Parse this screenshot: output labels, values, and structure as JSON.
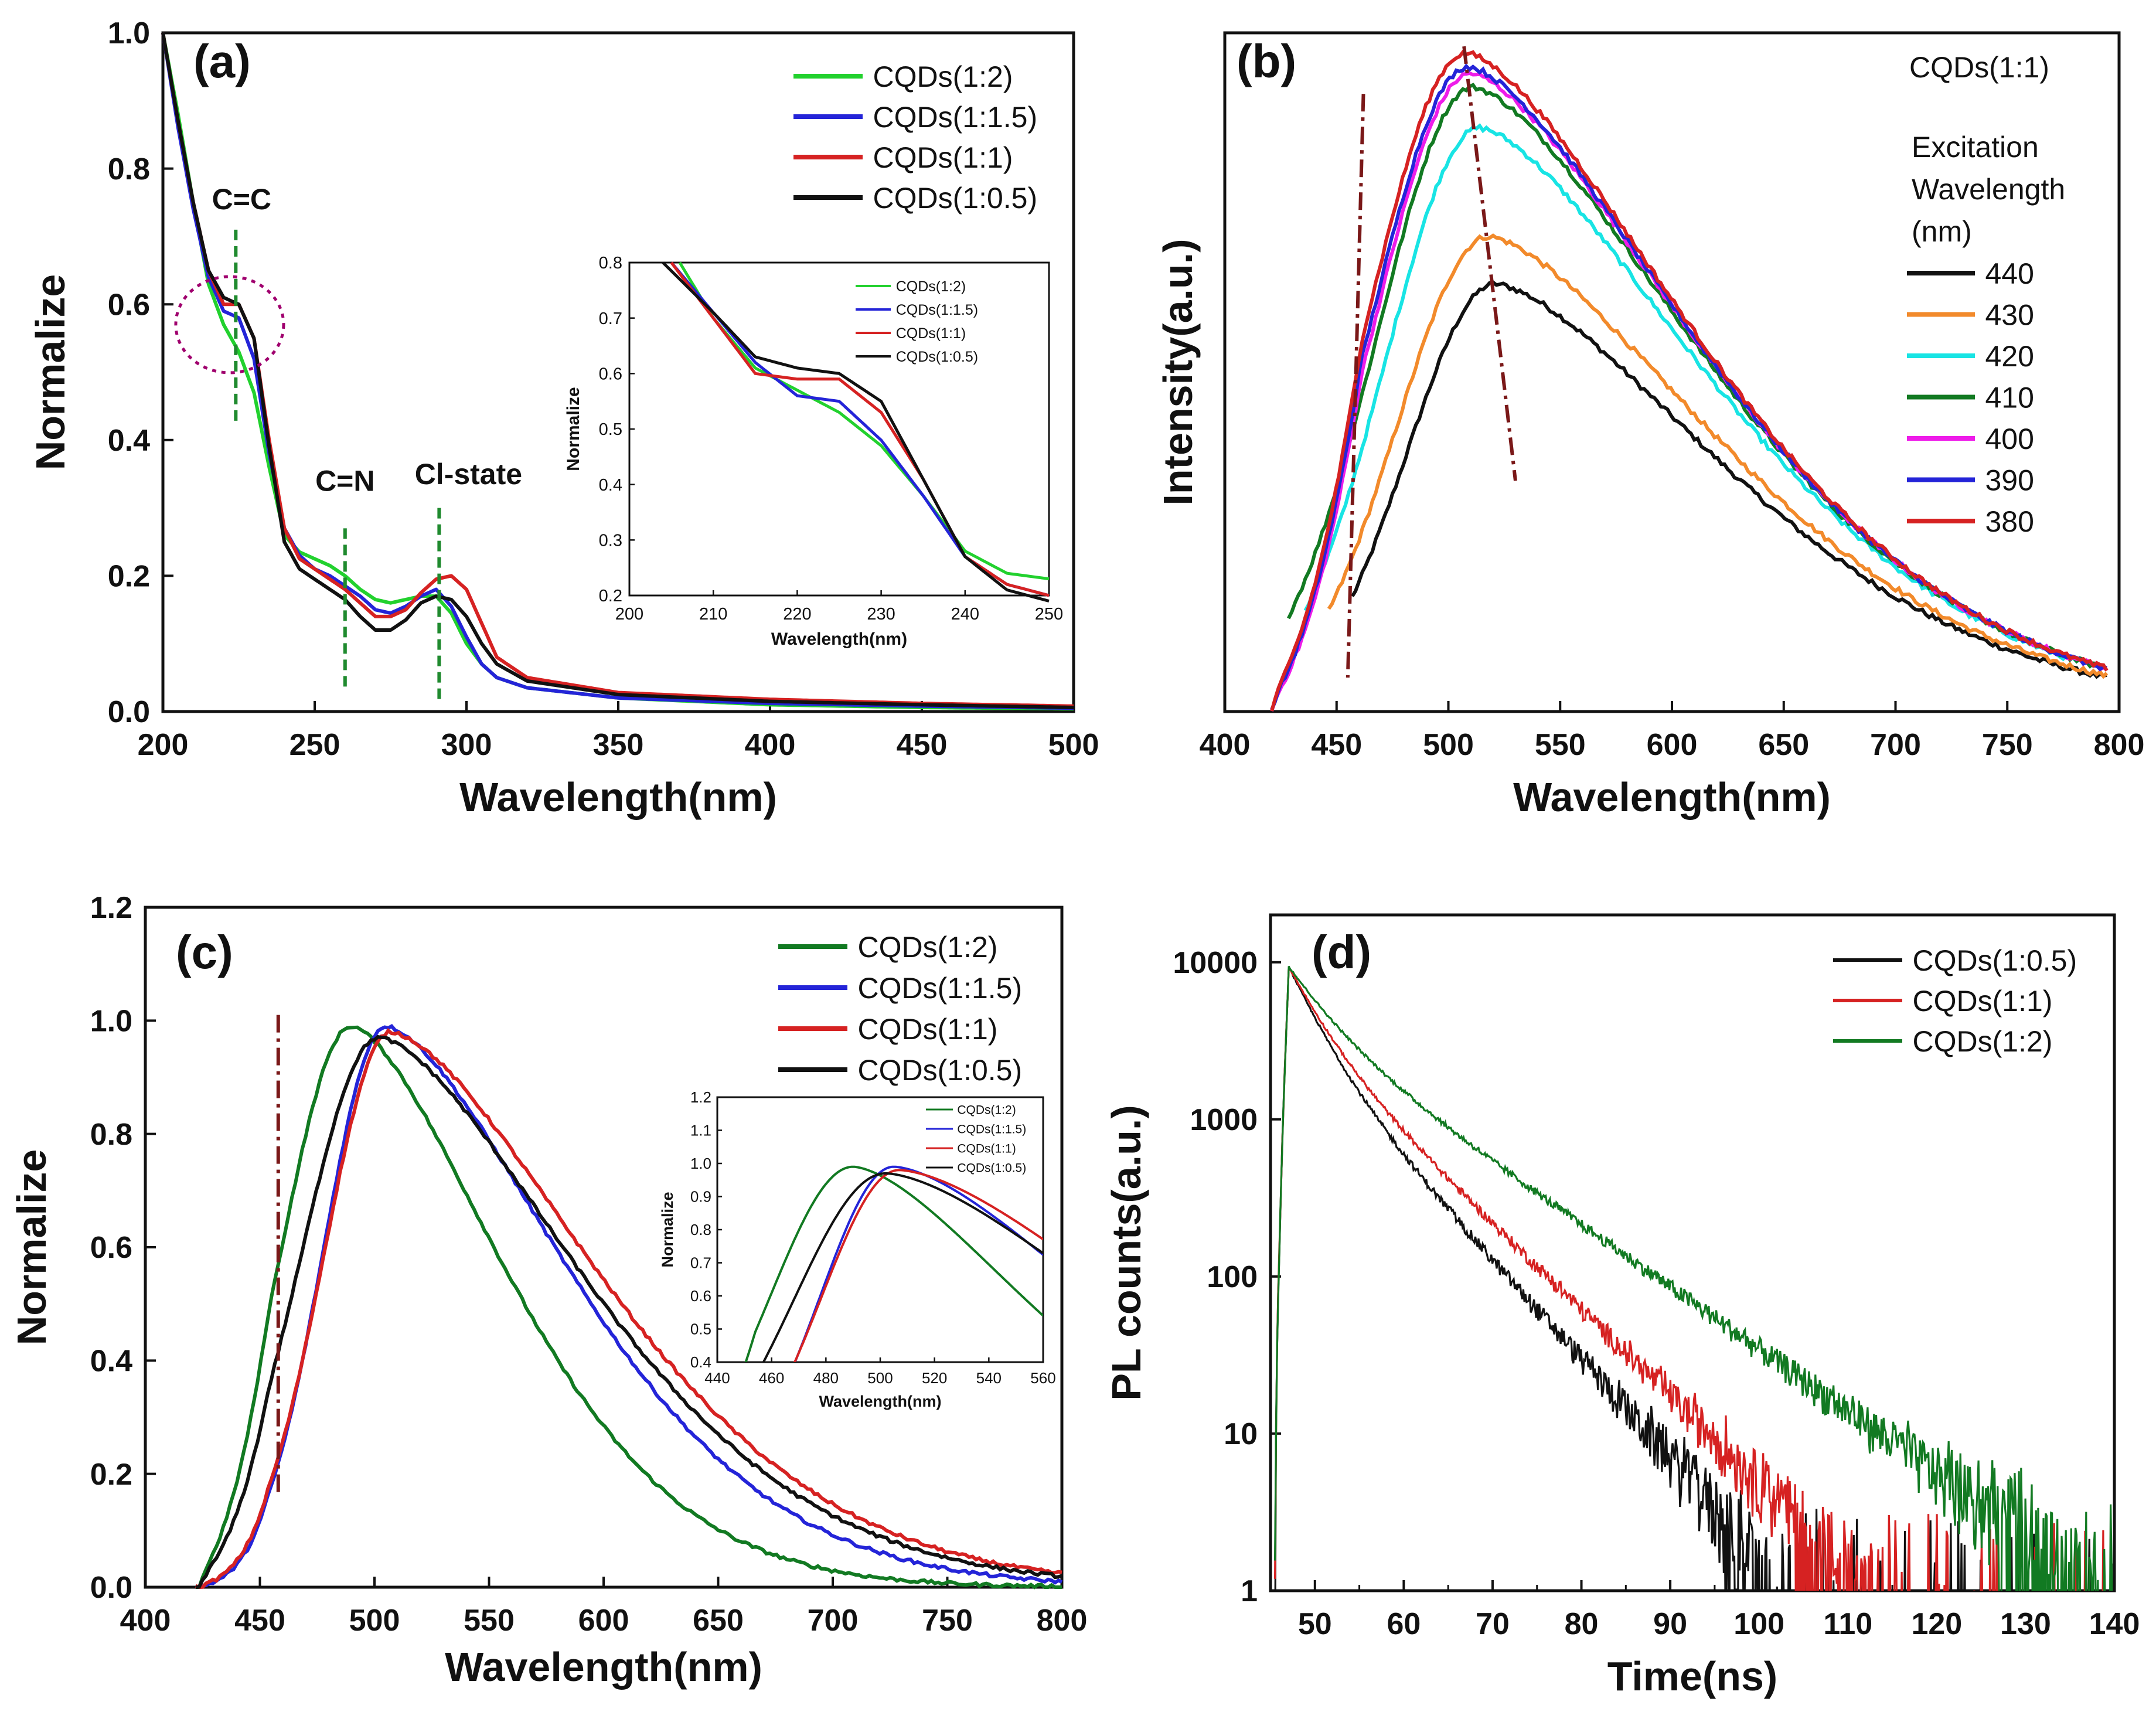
{
  "figure": {
    "colors": {
      "green": "#22d12e",
      "blue": "#2424d8",
      "red": "#d62222",
      "black": "#111111",
      "orange": "#f28a2b",
      "cyan": "#18e4e4",
      "darkgreen": "#127a22",
      "magenta": "#ee1ce9",
      "maroon": "#7a1818",
      "circle": "#a0006e",
      "dashgreen": "#1f8a2e"
    }
  },
  "chart_data": [
    {
      "id": "a",
      "tag": "(a)",
      "type": "line",
      "xlabel": "Wavelength(nm)",
      "ylabel": "Normalize",
      "xlim": [
        200,
        500
      ],
      "ylim": [
        0,
        1.0
      ],
      "xticks": [
        200,
        250,
        300,
        350,
        400,
        450,
        500
      ],
      "yticks": [
        "0.0",
        "0.2",
        "0.4",
        "0.6",
        "0.8",
        "1.0"
      ],
      "legend": [
        "CQDs(1:2)",
        "CQDs(1:1.5)",
        "CQDs(1:1)",
        "CQDs(1:0.5)"
      ],
      "annotations": [
        {
          "text": "C=C",
          "x": 224
        },
        {
          "text": "C=N",
          "x": 260
        },
        {
          "text": "Cl-state",
          "x": 291
        }
      ],
      "series": [
        {
          "name": "CQDs(1:2)",
          "color": "#22d12e",
          "points": [
            [
              200,
              1.0
            ],
            [
              205,
              0.88
            ],
            [
              210,
              0.75
            ],
            [
              215,
              0.63
            ],
            [
              220,
              0.57
            ],
            [
              225,
              0.53
            ],
            [
              230,
              0.47
            ],
            [
              235,
              0.36
            ],
            [
              240,
              0.26
            ],
            [
              245,
              0.235
            ],
            [
              250,
              0.225
            ],
            [
              255,
              0.215
            ],
            [
              260,
              0.2
            ],
            [
              265,
              0.18
            ],
            [
              270,
              0.165
            ],
            [
              275,
              0.16
            ],
            [
              280,
              0.165
            ],
            [
              285,
              0.17
            ],
            [
              290,
              0.17
            ],
            [
              295,
              0.145
            ],
            [
              300,
              0.1
            ],
            [
              305,
              0.07
            ],
            [
              310,
              0.05
            ],
            [
              320,
              0.035
            ],
            [
              350,
              0.02
            ],
            [
              400,
              0.01
            ],
            [
              450,
              0.006
            ],
            [
              500,
              0.004
            ]
          ]
        },
        {
          "name": "CQDs(1:1.5)",
          "color": "#2424d8",
          "points": [
            [
              200,
              1.0
            ],
            [
              205,
              0.86
            ],
            [
              210,
              0.74
            ],
            [
              215,
              0.64
            ],
            [
              220,
              0.59
            ],
            [
              225,
              0.58
            ],
            [
              230,
              0.52
            ],
            [
              235,
              0.38
            ],
            [
              240,
              0.27
            ],
            [
              245,
              0.23
            ],
            [
              250,
              0.21
            ],
            [
              255,
              0.2
            ],
            [
              260,
              0.185
            ],
            [
              265,
              0.17
            ],
            [
              270,
              0.15
            ],
            [
              275,
              0.145
            ],
            [
              280,
              0.155
            ],
            [
              285,
              0.17
            ],
            [
              290,
              0.18
            ],
            [
              295,
              0.155
            ],
            [
              300,
              0.11
            ],
            [
              305,
              0.07
            ],
            [
              310,
              0.05
            ],
            [
              320,
              0.035
            ],
            [
              350,
              0.02
            ],
            [
              400,
              0.012
            ],
            [
              450,
              0.008
            ],
            [
              500,
              0.005
            ]
          ]
        },
        {
          "name": "CQDs(1:1)",
          "color": "#d62222",
          "points": [
            [
              200,
              1.0
            ],
            [
              205,
              0.87
            ],
            [
              210,
              0.75
            ],
            [
              215,
              0.65
            ],
            [
              220,
              0.6
            ],
            [
              225,
              0.6
            ],
            [
              230,
              0.55
            ],
            [
              235,
              0.4
            ],
            [
              240,
              0.27
            ],
            [
              245,
              0.225
            ],
            [
              250,
              0.21
            ],
            [
              255,
              0.195
            ],
            [
              260,
              0.18
            ],
            [
              265,
              0.16
            ],
            [
              270,
              0.14
            ],
            [
              275,
              0.14
            ],
            [
              280,
              0.15
            ],
            [
              285,
              0.175
            ],
            [
              290,
              0.195
            ],
            [
              295,
              0.2
            ],
            [
              300,
              0.18
            ],
            [
              305,
              0.13
            ],
            [
              310,
              0.08
            ],
            [
              320,
              0.05
            ],
            [
              350,
              0.028
            ],
            [
              400,
              0.018
            ],
            [
              450,
              0.012
            ],
            [
              500,
              0.008
            ]
          ]
        },
        {
          "name": "CQDs(1:0.5)",
          "color": "#111111",
          "points": [
            [
              200,
              1.0
            ],
            [
              205,
              0.87
            ],
            [
              210,
              0.75
            ],
            [
              215,
              0.65
            ],
            [
              220,
              0.61
            ],
            [
              225,
              0.6
            ],
            [
              230,
              0.55
            ],
            [
              235,
              0.39
            ],
            [
              240,
              0.25
            ],
            [
              245,
              0.21
            ],
            [
              250,
              0.195
            ],
            [
              255,
              0.18
            ],
            [
              260,
              0.165
            ],
            [
              265,
              0.14
            ],
            [
              270,
              0.12
            ],
            [
              275,
              0.12
            ],
            [
              280,
              0.135
            ],
            [
              285,
              0.16
            ],
            [
              290,
              0.17
            ],
            [
              295,
              0.165
            ],
            [
              300,
              0.14
            ],
            [
              305,
              0.1
            ],
            [
              310,
              0.07
            ],
            [
              320,
              0.045
            ],
            [
              350,
              0.025
            ],
            [
              400,
              0.015
            ],
            [
              450,
              0.01
            ],
            [
              500,
              0.006
            ]
          ]
        }
      ],
      "inset": {
        "type": "line",
        "xlabel": "Wavelength(nm)",
        "ylabel": "Normalize",
        "xlim": [
          200,
          250
        ],
        "ylim": [
          0.2,
          0.8
        ],
        "xticks": [
          200,
          210,
          220,
          230,
          240,
          250
        ],
        "yticks": [
          "0.2",
          "0.3",
          "0.4",
          "0.5",
          "0.6",
          "0.7",
          "0.8"
        ],
        "legend": [
          "CQDs(1:2)",
          "CQDs(1:1.5)",
          "CQDs(1:1)",
          "CQDs(1:0.5)"
        ],
        "series": [
          {
            "name": "CQDs(1:2)",
            "color": "#22d12e",
            "points": [
              [
                206,
                0.8
              ],
              [
                210,
                0.7
              ],
              [
                215,
                0.61
              ],
              [
                220,
                0.57
              ],
              [
                225,
                0.53
              ],
              [
                230,
                0.47
              ],
              [
                235,
                0.38
              ],
              [
                240,
                0.28
              ],
              [
                245,
                0.24
              ],
              [
                250,
                0.23
              ]
            ]
          },
          {
            "name": "CQDs(1:1.5)",
            "color": "#2424d8",
            "points": [
              [
                205,
                0.8
              ],
              [
                210,
                0.71
              ],
              [
                215,
                0.62
              ],
              [
                220,
                0.56
              ],
              [
                225,
                0.55
              ],
              [
                230,
                0.48
              ],
              [
                235,
                0.38
              ],
              [
                240,
                0.27
              ],
              [
                245,
                0.22
              ],
              [
                250,
                0.2
              ]
            ]
          },
          {
            "name": "CQDs(1:1)",
            "color": "#d62222",
            "points": [
              [
                205,
                0.8
              ],
              [
                210,
                0.7
              ],
              [
                215,
                0.6
              ],
              [
                220,
                0.59
              ],
              [
                225,
                0.59
              ],
              [
                230,
                0.53
              ],
              [
                235,
                0.41
              ],
              [
                240,
                0.27
              ],
              [
                245,
                0.22
              ],
              [
                250,
                0.2
              ]
            ]
          },
          {
            "name": "CQDs(1:0.5)",
            "color": "#111111",
            "points": [
              [
                204,
                0.8
              ],
              [
                210,
                0.71
              ],
              [
                215,
                0.63
              ],
              [
                220,
                0.61
              ],
              [
                225,
                0.6
              ],
              [
                230,
                0.55
              ],
              [
                235,
                0.41
              ],
              [
                240,
                0.27
              ],
              [
                245,
                0.21
              ],
              [
                250,
                0.19
              ]
            ]
          }
        ]
      }
    },
    {
      "id": "b",
      "tag": "(b)",
      "type": "line",
      "xlabel": "Wavelength(nm)",
      "ylabel": "Intensity(a.u.)",
      "xlim": [
        400,
        800
      ],
      "ylim": [
        0,
        1.0
      ],
      "xticks": [
        400,
        450,
        500,
        550,
        600,
        650,
        700,
        750,
        800
      ],
      "yticks": [],
      "legend_title": "CQDs(1:1)",
      "legend_subtitle": [
        "Excitation",
        "Wavelength",
        "(nm)"
      ],
      "legend": [
        "440",
        "430",
        "420",
        "410",
        "400",
        "390",
        "380"
      ],
      "series": [
        {
          "name": "440",
          "color": "#111111",
          "peak": 521,
          "amp": 0.63,
          "start": 458
        },
        {
          "name": "430",
          "color": "#f28a2b",
          "peak": 518,
          "amp": 0.7,
          "start": 448
        },
        {
          "name": "420",
          "color": "#18e4e4",
          "peak": 514,
          "amp": 0.86,
          "start": 438
        },
        {
          "name": "410",
          "color": "#127a22",
          "peak": 511,
          "amp": 0.92,
          "start": 430
        },
        {
          "name": "400",
          "color": "#ee1ce9",
          "peak": 510,
          "amp": 0.94,
          "start": 425
        },
        {
          "name": "390",
          "color": "#2424d8",
          "peak": 509,
          "amp": 0.95,
          "start": 423
        },
        {
          "name": "380",
          "color": "#d62222",
          "peak": 508,
          "amp": 0.97,
          "start": 421
        }
      ]
    },
    {
      "id": "c",
      "tag": "(c)",
      "type": "line",
      "xlabel": "Wavelength(nm)",
      "ylabel": "Normalize",
      "xlim": [
        400,
        800
      ],
      "ylim": [
        0,
        1.2
      ],
      "xticks": [
        400,
        450,
        500,
        550,
        600,
        650,
        700,
        750,
        800
      ],
      "yticks": [
        "0.0",
        "0.2",
        "0.4",
        "0.6",
        "0.8",
        "1.0",
        "1.2"
      ],
      "legend": [
        "CQDs(1:2)",
        "CQDs(1:1.5)",
        "CQDs(1:1)",
        "CQDs(1:0.5)"
      ],
      "series": [
        {
          "name": "CQDs(1:2)",
          "color": "#127a22",
          "peak": 490,
          "amp": 0.99,
          "wl": 36,
          "wr": 80
        },
        {
          "name": "CQDs(1:1.5)",
          "color": "#2424d8",
          "peak": 505,
          "amp": 0.99,
          "wl": 32,
          "wr": 95
        },
        {
          "name": "CQDs(1:1)",
          "color": "#d62222",
          "peak": 507,
          "amp": 0.98,
          "wl": 34,
          "wr": 108
        },
        {
          "name": "CQDs(1:0.5)",
          "color": "#111111",
          "peak": 502,
          "amp": 0.97,
          "wl": 40,
          "wr": 106
        }
      ],
      "inset": {
        "type": "line",
        "xlabel": "Wavelength(nm)",
        "ylabel": "Normalize",
        "xlim": [
          440,
          560
        ],
        "ylim": [
          0.4,
          1.2
        ],
        "xticks": [
          440,
          460,
          480,
          500,
          520,
          540,
          560
        ],
        "yticks": [
          "0.4",
          "0.5",
          "0.6",
          "0.7",
          "0.8",
          "0.9",
          "1.0",
          "1.1",
          "1.2"
        ],
        "legend": [
          "CQDs(1:2)",
          "CQDs(1:1.5)",
          "CQDs(1:1)",
          "CQDs(1:0.5)"
        ]
      }
    },
    {
      "id": "d",
      "type": "line",
      "tag": "(d)",
      "xlabel": "Time(ns)",
      "ylabel": "PL counts(a.u.)",
      "xlim": [
        45,
        140
      ],
      "ylim": [
        1,
        20000
      ],
      "yscale": "log",
      "xticks": [
        50,
        60,
        70,
        80,
        90,
        100,
        110,
        120,
        130,
        140
      ],
      "yticks": [
        "1",
        "10",
        "100",
        "1000",
        "10000"
      ],
      "legend": [
        "CQDs(1:0.5)",
        "CQDs(1:1)",
        "CQDs(1:2)"
      ],
      "series": [
        {
          "name": "CQDs(1:0.5)",
          "color": "#111111",
          "peak_t": 47,
          "peak": 9500,
          "tau1": 3.0,
          "a1": 0.65,
          "tau2": 7.0
        },
        {
          "name": "CQDs(1:1)",
          "color": "#d62222",
          "peak_t": 47,
          "peak": 9500,
          "tau1": 3.2,
          "a1": 0.6,
          "tau2": 8.0
        },
        {
          "name": "CQDs(1:2)",
          "color": "#127a22",
          "peak_t": 47,
          "peak": 9500,
          "tau1": 4.0,
          "a1": 0.55,
          "tau2": 11.0
        }
      ]
    }
  ]
}
